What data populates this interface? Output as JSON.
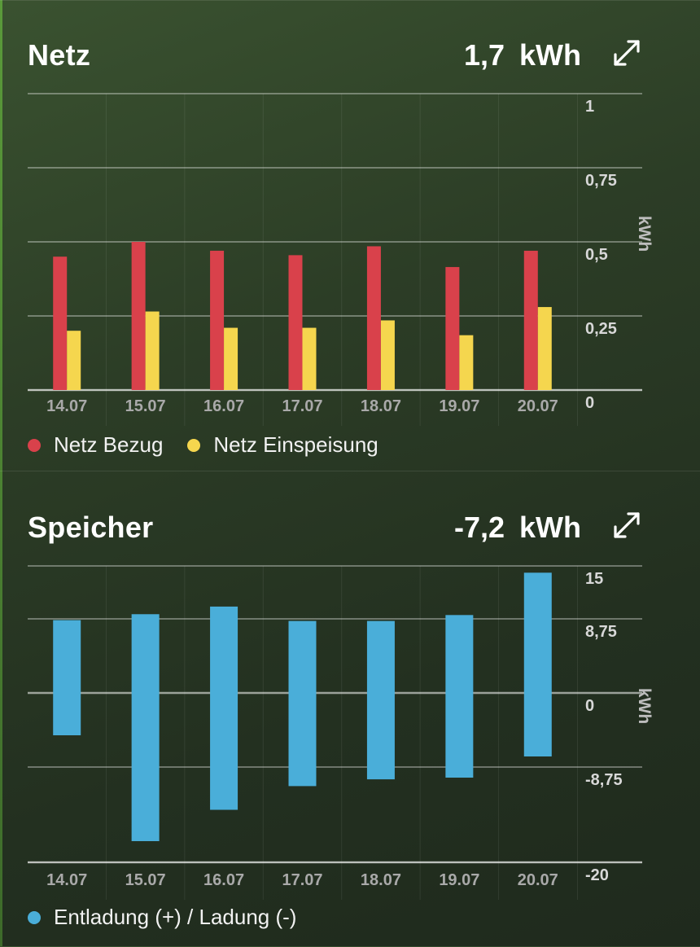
{
  "cards": [
    {
      "title": "Netz",
      "total_value": "1,7",
      "total_unit": "kWh",
      "legend": [
        {
          "label": "Netz Bezug",
          "color": "#d9414b"
        },
        {
          "label": "Netz Einspeisung",
          "color": "#f5d64e"
        }
      ]
    },
    {
      "title": "Speicher",
      "total_value": "-7,2",
      "total_unit": "kWh",
      "legend": [
        {
          "label": "Entladung (+) / Ladung (-)",
          "color": "#4aaed9"
        }
      ]
    }
  ],
  "chart_data": [
    {
      "type": "bar",
      "categories": [
        "14.07",
        "15.07",
        "16.07",
        "17.07",
        "18.07",
        "19.07",
        "20.07"
      ],
      "series": [
        {
          "name": "Netz Bezug",
          "color": "#d9414b",
          "values": [
            0.45,
            0.5,
            0.47,
            0.455,
            0.485,
            0.415,
            0.47
          ]
        },
        {
          "name": "Netz Einspeisung",
          "color": "#f5d64e",
          "values": [
            0.2,
            0.265,
            0.21,
            0.21,
            0.235,
            0.185,
            0.28
          ]
        }
      ],
      "ylabel": "kWh",
      "ylim": [
        0,
        1
      ],
      "yticks": [
        0,
        0.25,
        0.5,
        0.75,
        1
      ],
      "ytick_labels": [
        "0",
        "0,25",
        "0,5",
        "0,75",
        "1"
      ],
      "axis_side": "right",
      "grid": true
    },
    {
      "type": "bar",
      "categories": [
        "14.07",
        "15.07",
        "16.07",
        "17.07",
        "18.07",
        "19.07",
        "20.07"
      ],
      "series": [
        {
          "name": "Entladung (+) / Ladung (-)",
          "color": "#4aaed9",
          "low": [
            -5.0,
            -17.5,
            -13.8,
            -11.0,
            -10.2,
            -10.0,
            -7.5
          ],
          "high": [
            8.6,
            9.3,
            10.2,
            8.5,
            8.5,
            9.2,
            14.2
          ]
        }
      ],
      "ylabel": "kWh",
      "ylim": [
        -20,
        15
      ],
      "yticks": [
        15,
        8.75,
        0,
        -8.75,
        -20
      ],
      "ytick_labels": [
        "15",
        "8,75",
        "0",
        "-8,75",
        "-20"
      ],
      "axis_side": "right",
      "grid": true
    }
  ]
}
